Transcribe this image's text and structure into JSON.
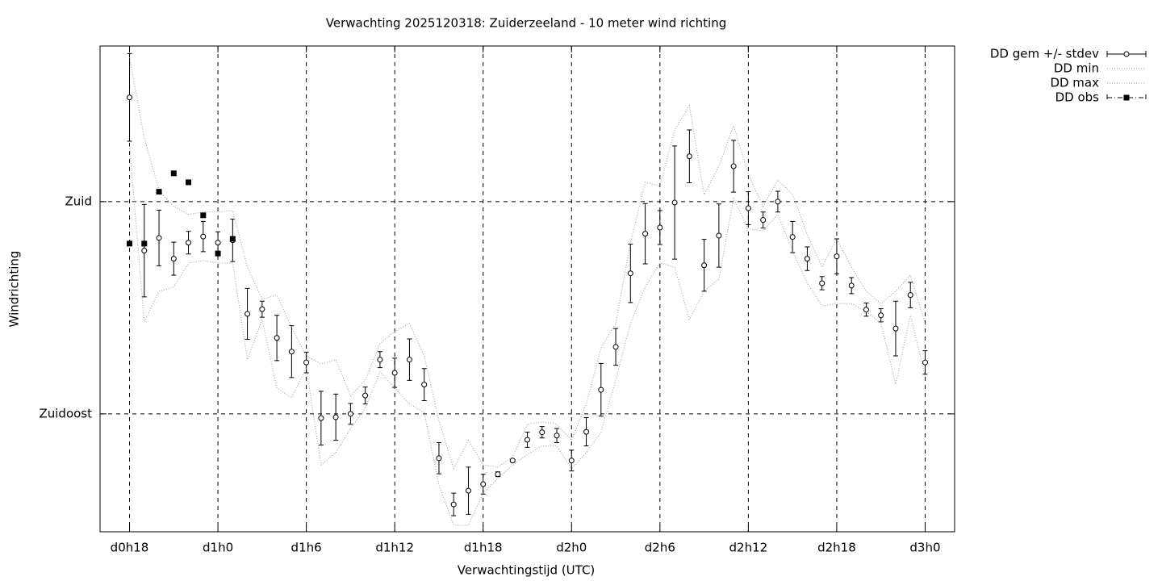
{
  "chart_data": {
    "type": "errorbar",
    "title": "Verwachting 2025120318: Zuiderzeeland - 10 meter wind richting",
    "xlabel": "Verwachtingstijd (UTC)",
    "ylabel": "Windrichting",
    "x": [
      18,
      19,
      20,
      21,
      22,
      23,
      24,
      25,
      26,
      27,
      28,
      29,
      30,
      31,
      32,
      33,
      34,
      35,
      36,
      37,
      38,
      39,
      40,
      41,
      42,
      43,
      44,
      45,
      46,
      47,
      48,
      49,
      50,
      51,
      52,
      53,
      54,
      55,
      56,
      57,
      58,
      59,
      60,
      61,
      62,
      63,
      64,
      65,
      66,
      67,
      68,
      69,
      70,
      71,
      72
    ],
    "xlim": [
      16,
      74
    ],
    "xticks": [
      {
        "value": 18,
        "label": "d0h18"
      },
      {
        "value": 24,
        "label": "d1h0"
      },
      {
        "value": 30,
        "label": "d1h6"
      },
      {
        "value": 36,
        "label": "d1h12"
      },
      {
        "value": 42,
        "label": "d1h18"
      },
      {
        "value": 48,
        "label": "d2h0"
      },
      {
        "value": 54,
        "label": "d2h6"
      },
      {
        "value": 60,
        "label": "d2h12"
      },
      {
        "value": 66,
        "label": "d2h18"
      },
      {
        "value": 72,
        "label": "d3h0"
      }
    ],
    "ylim": [
      110,
      213
    ],
    "yticks": [
      {
        "value": 135,
        "label": "Zuidoost"
      },
      {
        "value": 180,
        "label": "Zuid"
      }
    ],
    "grid": true,
    "legend": "outside-top-right",
    "series": [
      {
        "name": "DD gem +/- stdev",
        "style": "errorbar",
        "color": "#000000",
        "values": [
          202.1,
          169.6,
          172.3,
          167.9,
          171.3,
          172.6,
          171.3,
          171.8,
          156.2,
          157.2,
          151.1,
          148.2,
          145.9,
          134.1,
          134.3,
          135.0,
          138.9,
          146.5,
          143.7,
          146.5,
          141.2,
          125.6,
          115.8,
          118.7,
          120.1,
          122.2,
          125.1,
          129.5,
          131.1,
          130.4,
          125.1,
          131.2,
          140.1,
          149.2,
          164.8,
          173.2,
          174.5,
          179.8,
          189.6,
          166.5,
          172.8,
          187.5,
          178.6,
          176.1,
          180.0,
          172.5,
          167.9,
          162.7,
          168.4,
          162.2,
          157.1,
          155.9,
          153.1,
          160.2,
          145.9
        ],
        "errors": [
          9.3,
          9.8,
          5.9,
          3.5,
          2.4,
          3.2,
          2.3,
          4.5,
          5.4,
          1.7,
          4.8,
          5.5,
          2.2,
          5.7,
          4.9,
          2.2,
          1.8,
          1.7,
          3.1,
          4.4,
          3.4,
          3.3,
          2.4,
          5.0,
          2.1,
          0.5,
          0.3,
          1.6,
          1.2,
          1.5,
          2.2,
          3.0,
          5.6,
          3.9,
          6.2,
          6.4,
          3.6,
          12.0,
          5.6,
          5.5,
          6.7,
          5.5,
          3.5,
          1.7,
          2.2,
          3.3,
          2.5,
          1.4,
          3.7,
          1.7,
          1.4,
          1.4,
          5.8,
          2.7,
          2.5
        ]
      },
      {
        "name": "DD min",
        "style": "dotted",
        "color": "#999999",
        "values": [
          191.8,
          154.5,
          161.0,
          161.9,
          167.0,
          167.5,
          167.0,
          167.0,
          146.5,
          155.0,
          140.5,
          138.4,
          144.8,
          124.2,
          126.8,
          131.9,
          136.2,
          143.9,
          140.5,
          137.1,
          135.3,
          119.9,
          111.4,
          111.4,
          118.2,
          121.3,
          124.1,
          126.4,
          128.2,
          128.2,
          123.4,
          126.8,
          131.1,
          142.2,
          154.2,
          161.9,
          167.0,
          166.1,
          155.0,
          161.0,
          163.6,
          180.7,
          174.2,
          173.8,
          177.3,
          169.6,
          162.7,
          157.9,
          158.4,
          158.4,
          156.7,
          154.2,
          141.3,
          155.9,
          143.0
        ]
      },
      {
        "name": "DD max",
        "style": "dotted",
        "color": "#999999",
        "values": [
          210.6,
          193.5,
          182.4,
          179.0,
          177.3,
          177.8,
          177.8,
          178.1,
          166.1,
          159.3,
          160.2,
          153.3,
          147.3,
          145.6,
          146.5,
          138.8,
          142.2,
          149.9,
          152.5,
          154.2,
          147.3,
          133.6,
          123.4,
          129.4,
          124.2,
          123.7,
          125.9,
          132.8,
          133.3,
          132.8,
          129.4,
          137.1,
          149.0,
          154.2,
          171.3,
          184.1,
          183.3,
          195.2,
          200.4,
          181.5,
          187.5,
          196.1,
          185.8,
          179.0,
          184.6,
          181.5,
          173.0,
          166.1,
          172.1,
          166.1,
          161.0,
          158.4,
          161.0,
          164.4,
          154.2
        ]
      },
      {
        "name": "DD obs",
        "style": "points",
        "color": "#000000",
        "values": [
          171.1,
          171.1,
          182.1,
          186.0,
          184.1,
          177.1,
          169.0,
          172.1,
          null,
          null,
          null,
          null,
          null,
          null,
          null,
          null,
          null,
          null,
          null,
          null,
          null,
          null,
          null,
          null,
          null,
          null,
          null,
          null,
          null,
          null,
          null,
          null,
          null,
          null,
          null,
          null,
          null,
          null,
          null,
          null,
          null,
          null,
          null,
          null,
          null,
          null,
          null,
          null,
          null,
          null,
          null,
          null,
          null,
          null,
          null
        ]
      }
    ]
  }
}
